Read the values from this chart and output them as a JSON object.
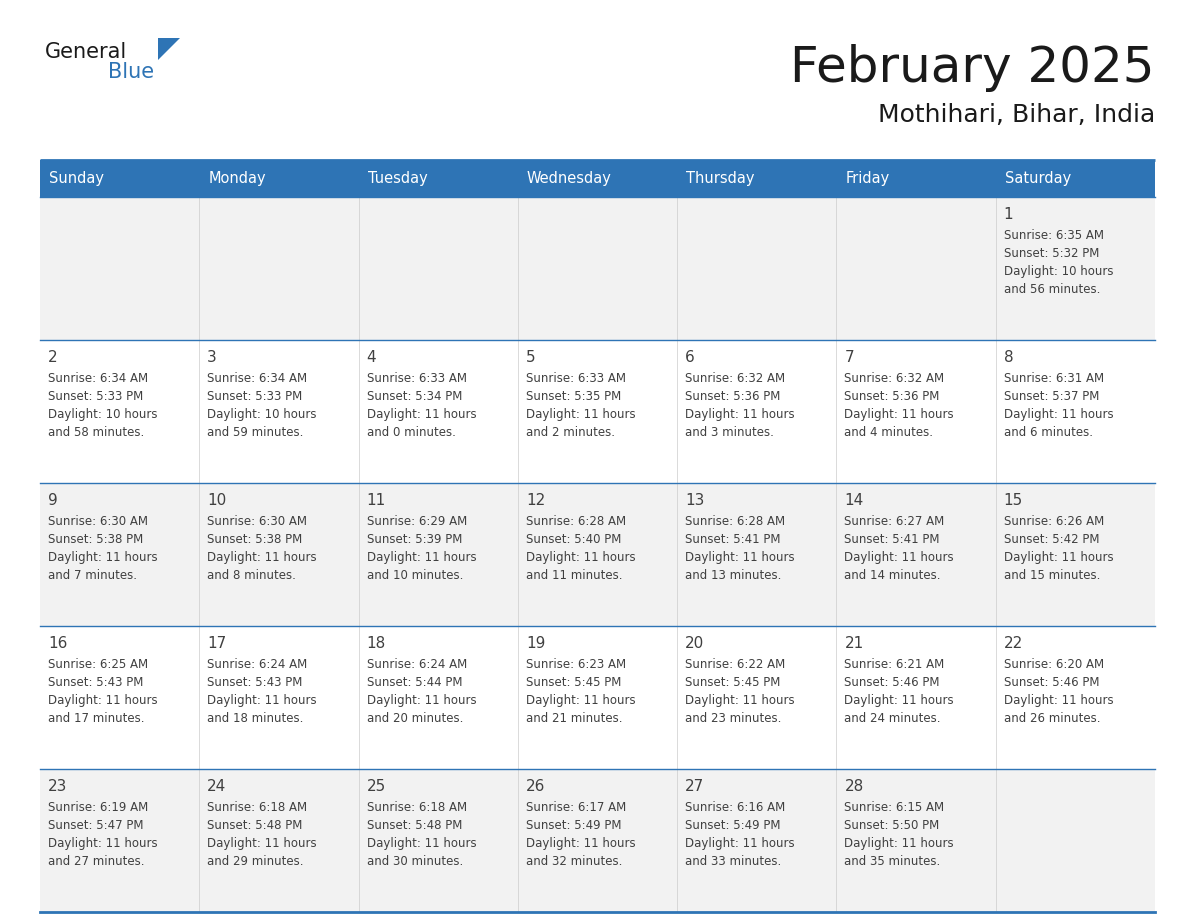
{
  "title": "February 2025",
  "subtitle": "Mothihari, Bihar, India",
  "header_bg": "#2E74B5",
  "header_text_color": "#FFFFFF",
  "day_names": [
    "Sunday",
    "Monday",
    "Tuesday",
    "Wednesday",
    "Thursday",
    "Friday",
    "Saturday"
  ],
  "alt_row_bg": "#F2F2F2",
  "white_bg": "#FFFFFF",
  "border_color": "#2E74B5",
  "cell_text_color": "#404040",
  "day_num_color": "#404040",
  "logo_general_color": "#1a1a1a",
  "logo_blue_color": "#2E74B5",
  "calendar": [
    [
      null,
      null,
      null,
      null,
      null,
      null,
      {
        "day": 1,
        "sunrise": "6:35 AM",
        "sunset": "5:32 PM",
        "daylight": "10 hours and 56 minutes."
      }
    ],
    [
      {
        "day": 2,
        "sunrise": "6:34 AM",
        "sunset": "5:33 PM",
        "daylight": "10 hours and 58 minutes."
      },
      {
        "day": 3,
        "sunrise": "6:34 AM",
        "sunset": "5:33 PM",
        "daylight": "10 hours and 59 minutes."
      },
      {
        "day": 4,
        "sunrise": "6:33 AM",
        "sunset": "5:34 PM",
        "daylight": "11 hours and 0 minutes."
      },
      {
        "day": 5,
        "sunrise": "6:33 AM",
        "sunset": "5:35 PM",
        "daylight": "11 hours and 2 minutes."
      },
      {
        "day": 6,
        "sunrise": "6:32 AM",
        "sunset": "5:36 PM",
        "daylight": "11 hours and 3 minutes."
      },
      {
        "day": 7,
        "sunrise": "6:32 AM",
        "sunset": "5:36 PM",
        "daylight": "11 hours and 4 minutes."
      },
      {
        "day": 8,
        "sunrise": "6:31 AM",
        "sunset": "5:37 PM",
        "daylight": "11 hours and 6 minutes."
      }
    ],
    [
      {
        "day": 9,
        "sunrise": "6:30 AM",
        "sunset": "5:38 PM",
        "daylight": "11 hours and 7 minutes."
      },
      {
        "day": 10,
        "sunrise": "6:30 AM",
        "sunset": "5:38 PM",
        "daylight": "11 hours and 8 minutes."
      },
      {
        "day": 11,
        "sunrise": "6:29 AM",
        "sunset": "5:39 PM",
        "daylight": "11 hours and 10 minutes."
      },
      {
        "day": 12,
        "sunrise": "6:28 AM",
        "sunset": "5:40 PM",
        "daylight": "11 hours and 11 minutes."
      },
      {
        "day": 13,
        "sunrise": "6:28 AM",
        "sunset": "5:41 PM",
        "daylight": "11 hours and 13 minutes."
      },
      {
        "day": 14,
        "sunrise": "6:27 AM",
        "sunset": "5:41 PM",
        "daylight": "11 hours and 14 minutes."
      },
      {
        "day": 15,
        "sunrise": "6:26 AM",
        "sunset": "5:42 PM",
        "daylight": "11 hours and 15 minutes."
      }
    ],
    [
      {
        "day": 16,
        "sunrise": "6:25 AM",
        "sunset": "5:43 PM",
        "daylight": "11 hours and 17 minutes."
      },
      {
        "day": 17,
        "sunrise": "6:24 AM",
        "sunset": "5:43 PM",
        "daylight": "11 hours and 18 minutes."
      },
      {
        "day": 18,
        "sunrise": "6:24 AM",
        "sunset": "5:44 PM",
        "daylight": "11 hours and 20 minutes."
      },
      {
        "day": 19,
        "sunrise": "6:23 AM",
        "sunset": "5:45 PM",
        "daylight": "11 hours and 21 minutes."
      },
      {
        "day": 20,
        "sunrise": "6:22 AM",
        "sunset": "5:45 PM",
        "daylight": "11 hours and 23 minutes."
      },
      {
        "day": 21,
        "sunrise": "6:21 AM",
        "sunset": "5:46 PM",
        "daylight": "11 hours and 24 minutes."
      },
      {
        "day": 22,
        "sunrise": "6:20 AM",
        "sunset": "5:46 PM",
        "daylight": "11 hours and 26 minutes."
      }
    ],
    [
      {
        "day": 23,
        "sunrise": "6:19 AM",
        "sunset": "5:47 PM",
        "daylight": "11 hours and 27 minutes."
      },
      {
        "day": 24,
        "sunrise": "6:18 AM",
        "sunset": "5:48 PM",
        "daylight": "11 hours and 29 minutes."
      },
      {
        "day": 25,
        "sunrise": "6:18 AM",
        "sunset": "5:48 PM",
        "daylight": "11 hours and 30 minutes."
      },
      {
        "day": 26,
        "sunrise": "6:17 AM",
        "sunset": "5:49 PM",
        "daylight": "11 hours and 32 minutes."
      },
      {
        "day": 27,
        "sunrise": "6:16 AM",
        "sunset": "5:49 PM",
        "daylight": "11 hours and 33 minutes."
      },
      {
        "day": 28,
        "sunrise": "6:15 AM",
        "sunset": "5:50 PM",
        "daylight": "11 hours and 35 minutes."
      },
      null
    ]
  ]
}
